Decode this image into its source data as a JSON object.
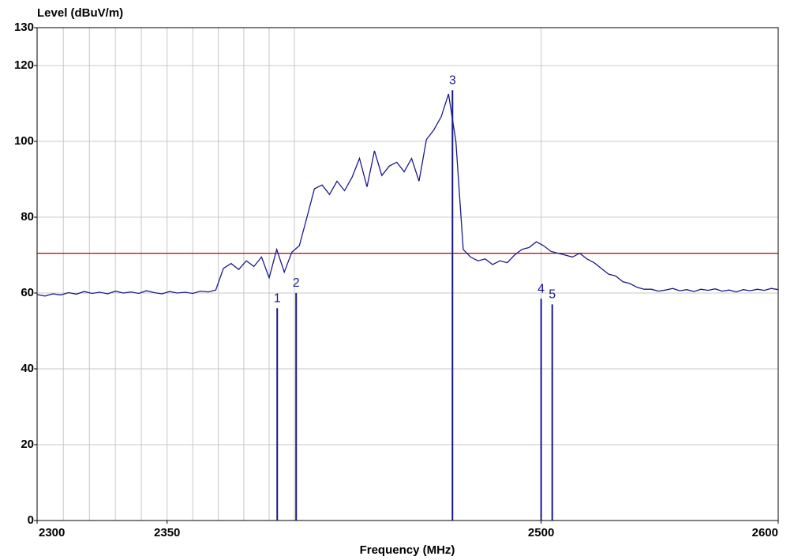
{
  "chart_data": {
    "type": "line",
    "y_label": "Level (dBuV/m)",
    "x_label": "Frequency (MHz)",
    "xscale": "log",
    "xlim": [
      2300,
      2600
    ],
    "ylim": [
      0,
      130
    ],
    "xticks": [
      2300,
      2350,
      2500,
      2600
    ],
    "yticks": [
      0,
      20,
      40,
      60,
      80,
      100,
      120,
      130
    ],
    "xgrid": [
      2310,
      2320,
      2330,
      2340,
      2350,
      2360,
      2370,
      2380,
      2390,
      2400,
      2500
    ],
    "grid": true,
    "limit": {
      "value": 70.5,
      "color": "#c00000"
    },
    "series": [
      {
        "color": "#1a1a8c",
        "x": [
          2300,
          2303,
          2306,
          2309,
          2312,
          2315,
          2318,
          2321,
          2324,
          2327,
          2330,
          2333,
          2336,
          2339,
          2342,
          2345,
          2348,
          2351,
          2354,
          2357,
          2360,
          2363,
          2366,
          2369,
          2372,
          2375,
          2378,
          2381,
          2384,
          2387,
          2390,
          2393,
          2396,
          2399,
          2402,
          2405,
          2408,
          2411,
          2414,
          2417,
          2420,
          2423,
          2426,
          2429,
          2432,
          2435,
          2438,
          2441,
          2444,
          2447,
          2450,
          2453,
          2456,
          2459,
          2462,
          2465,
          2468,
          2471,
          2474,
          2477,
          2480,
          2483,
          2486,
          2489,
          2492,
          2495,
          2498,
          2501,
          2504,
          2507,
          2510,
          2513,
          2516,
          2519,
          2522,
          2525,
          2528,
          2531,
          2534,
          2537,
          2540,
          2543,
          2546,
          2549,
          2552,
          2555,
          2558,
          2561,
          2564,
          2567,
          2570,
          2573,
          2576,
          2579,
          2582,
          2585,
          2588,
          2591,
          2594,
          2597,
          2600
        ],
        "values": [
          59.6,
          59.2,
          59.8,
          59.5,
          60.1,
          59.7,
          60.4,
          59.9,
          60.2,
          59.8,
          60.5,
          60.0,
          60.3,
          59.9,
          60.6,
          60.1,
          59.8,
          60.4,
          60.0,
          60.2,
          59.9,
          60.5,
          60.3,
          60.8,
          66.5,
          67.8,
          66.2,
          68.5,
          67.0,
          69.5,
          64.0,
          71.5,
          65.5,
          70.8,
          72.5,
          80.0,
          87.5,
          88.5,
          86.0,
          89.5,
          87.0,
          90.5,
          95.5,
          88.0,
          97.5,
          91.0,
          93.5,
          94.5,
          92.0,
          95.5,
          89.5,
          100.5,
          103.0,
          106.5,
          112.5,
          100.0,
          71.5,
          69.5,
          68.5,
          69.0,
          67.5,
          68.5,
          68.0,
          70.0,
          71.5,
          72.0,
          73.5,
          72.5,
          71.0,
          70.5,
          70.0,
          69.5,
          70.5,
          69.0,
          68.0,
          66.5,
          65.0,
          64.5,
          63.0,
          62.5,
          61.5,
          61.0,
          61.0,
          60.5,
          60.8,
          61.2,
          60.6,
          60.9,
          60.4,
          61.0,
          60.7,
          61.1,
          60.5,
          60.8,
          60.3,
          60.9,
          60.6,
          61.0,
          60.7,
          61.2,
          60.9
        ]
      }
    ],
    "markers": {
      "labels": [
        "1",
        "2",
        "3",
        "4",
        "5"
      ],
      "x": [
        2393.2,
        2400.7,
        2463.6,
        2500.0,
        2504.6
      ],
      "values": [
        56.0,
        60.0,
        113.5,
        58.5,
        57.0
      ],
      "color": "#1a1a8c"
    }
  }
}
